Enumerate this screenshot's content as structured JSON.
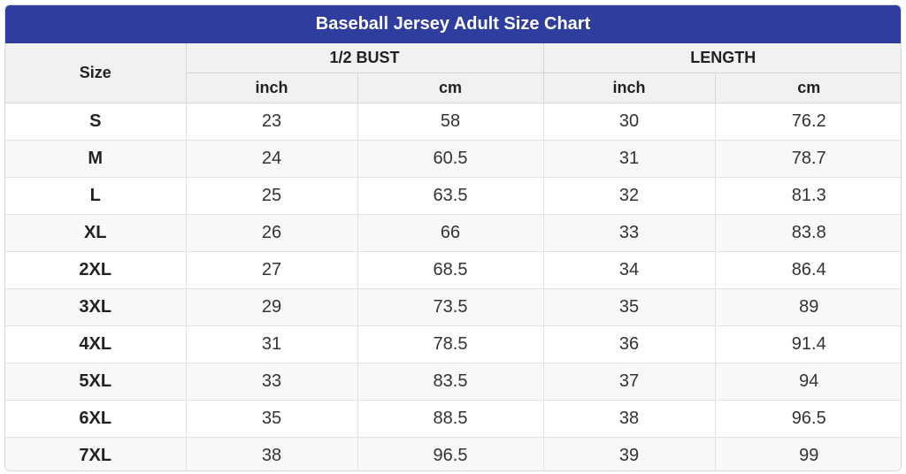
{
  "title": "Baseball Jersey Adult Size Chart",
  "headers": {
    "size": "Size",
    "bust": "1/2 BUST",
    "length": "LENGTH",
    "bust_inch": "inch",
    "bust_cm": "cm",
    "length_inch": "inch",
    "length_cm": "cm"
  },
  "rows": [
    {
      "size": "S",
      "bust_inch": "23",
      "bust_cm": "58",
      "length_inch": "30",
      "length_cm": "76.2"
    },
    {
      "size": "M",
      "bust_inch": "24",
      "bust_cm": "60.5",
      "length_inch": "31",
      "length_cm": "78.7"
    },
    {
      "size": "L",
      "bust_inch": "25",
      "bust_cm": "63.5",
      "length_inch": "32",
      "length_cm": "81.3"
    },
    {
      "size": "XL",
      "bust_inch": "26",
      "bust_cm": "66",
      "length_inch": "33",
      "length_cm": "83.8"
    },
    {
      "size": "2XL",
      "bust_inch": "27",
      "bust_cm": "68.5",
      "length_inch": "34",
      "length_cm": "86.4"
    },
    {
      "size": "3XL",
      "bust_inch": "29",
      "bust_cm": "73.5",
      "length_inch": "35",
      "length_cm": "89"
    },
    {
      "size": "4XL",
      "bust_inch": "31",
      "bust_cm": "78.5",
      "length_inch": "36",
      "length_cm": "91.4"
    },
    {
      "size": "5XL",
      "bust_inch": "33",
      "bust_cm": "83.5",
      "length_inch": "37",
      "length_cm": "94"
    },
    {
      "size": "6XL",
      "bust_inch": "35",
      "bust_cm": "88.5",
      "length_inch": "38",
      "length_cm": "96.5"
    },
    {
      "size": "7XL",
      "bust_inch": "38",
      "bust_cm": "96.5",
      "length_inch": "39",
      "length_cm": "99"
    }
  ],
  "colors": {
    "title_bar": "#2f3e9e",
    "header_bg": "#f1f1f1",
    "row_alt_bg": "#f8f8f8"
  }
}
